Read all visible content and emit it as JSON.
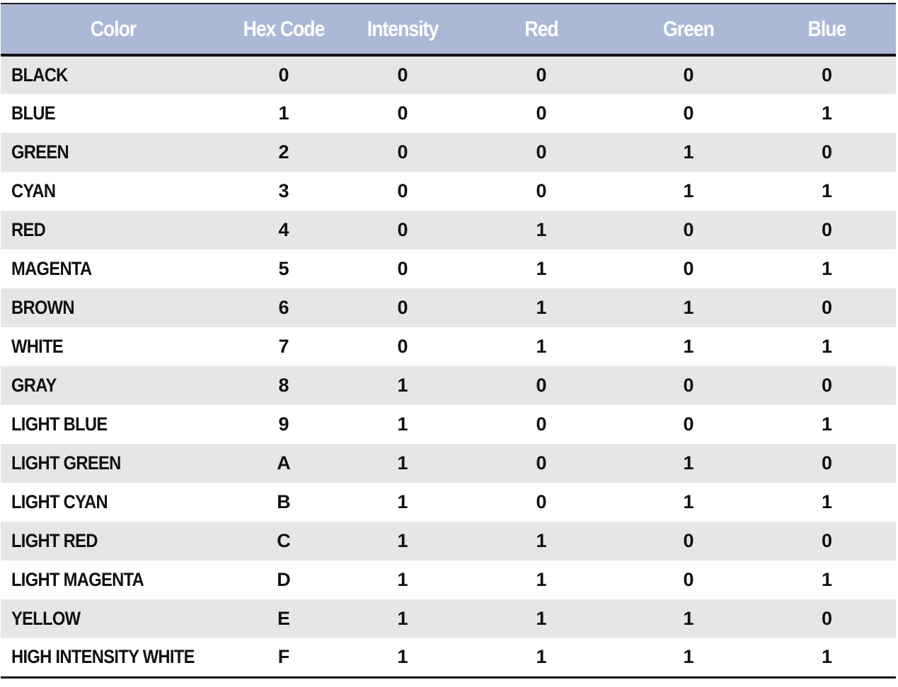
{
  "table": {
    "headers": {
      "color": "Color",
      "hex": "Hex Code",
      "intensity": "Intensity",
      "red": "Red",
      "green": "Green",
      "blue": "Blue"
    },
    "rows": [
      {
        "color": "BLACK",
        "hex": "0",
        "intensity": "0",
        "red": "0",
        "green": "0",
        "blue": "0"
      },
      {
        "color": "BLUE",
        "hex": "1",
        "intensity": "0",
        "red": "0",
        "green": "0",
        "blue": "1"
      },
      {
        "color": "GREEN",
        "hex": "2",
        "intensity": "0",
        "red": "0",
        "green": "1",
        "blue": "0"
      },
      {
        "color": "CYAN",
        "hex": "3",
        "intensity": "0",
        "red": "0",
        "green": "1",
        "blue": "1"
      },
      {
        "color": "RED",
        "hex": "4",
        "intensity": "0",
        "red": "1",
        "green": "0",
        "blue": "0"
      },
      {
        "color": "MAGENTA",
        "hex": "5",
        "intensity": "0",
        "red": "1",
        "green": "0",
        "blue": "1"
      },
      {
        "color": "BROWN",
        "hex": "6",
        "intensity": "0",
        "red": "1",
        "green": "1",
        "blue": "0"
      },
      {
        "color": "WHITE",
        "hex": "7",
        "intensity": "0",
        "red": "1",
        "green": "1",
        "blue": "1"
      },
      {
        "color": "GRAY",
        "hex": "8",
        "intensity": "1",
        "red": "0",
        "green": "0",
        "blue": "0"
      },
      {
        "color": "LIGHT BLUE",
        "hex": "9",
        "intensity": "1",
        "red": "0",
        "green": "0",
        "blue": "1"
      },
      {
        "color": "LIGHT GREEN",
        "hex": "A",
        "intensity": "1",
        "red": "0",
        "green": "1",
        "blue": "0"
      },
      {
        "color": "LIGHT CYAN",
        "hex": "B",
        "intensity": "1",
        "red": "0",
        "green": "1",
        "blue": "1"
      },
      {
        "color": "LIGHT RED",
        "hex": "C",
        "intensity": "1",
        "red": "1",
        "green": "0",
        "blue": "0"
      },
      {
        "color": "LIGHT MAGENTA",
        "hex": "D",
        "intensity": "1",
        "red": "1",
        "green": "0",
        "blue": "1"
      },
      {
        "color": "YELLOW",
        "hex": "E",
        "intensity": "1",
        "red": "1",
        "green": "1",
        "blue": "0"
      },
      {
        "color": "HIGH INTENSITY WHITE",
        "hex": "F",
        "intensity": "1",
        "red": "1",
        "green": "1",
        "blue": "1"
      }
    ]
  },
  "colors": {
    "header_bg": "#abb8d6",
    "header_text": "#ffffff",
    "row_stripe": "#e6e6e6",
    "row_plain": "#ffffff",
    "rule": "#111111"
  }
}
